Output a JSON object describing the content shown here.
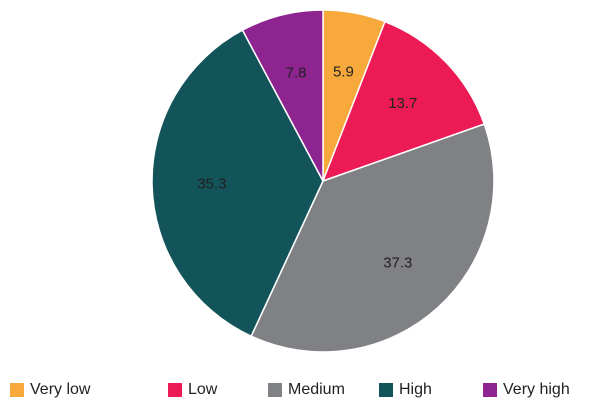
{
  "chart_data": {
    "type": "pie",
    "slices": [
      {
        "name": "Very low",
        "value": 5.9,
        "label": "5.9",
        "color": "#f7a93b"
      },
      {
        "name": "Low",
        "value": 13.7,
        "label": "13.7",
        "color": "#ec1b55"
      },
      {
        "name": "Medium",
        "value": 37.3,
        "label": "37.3",
        "color": "#808184"
      },
      {
        "name": "High",
        "value": 35.3,
        "label": "35.3",
        "color": "#13545a"
      },
      {
        "name": "Very high",
        "value": 7.8,
        "label": "7.8",
        "color": "#8e2490"
      }
    ],
    "legend": {
      "placement": "bottom",
      "entries": [
        "Very low",
        "Low",
        "Medium",
        "High",
        "Very high"
      ]
    },
    "start_angle_deg": 0,
    "direction": "clockwise",
    "slice_border_color": "#ffffff"
  }
}
